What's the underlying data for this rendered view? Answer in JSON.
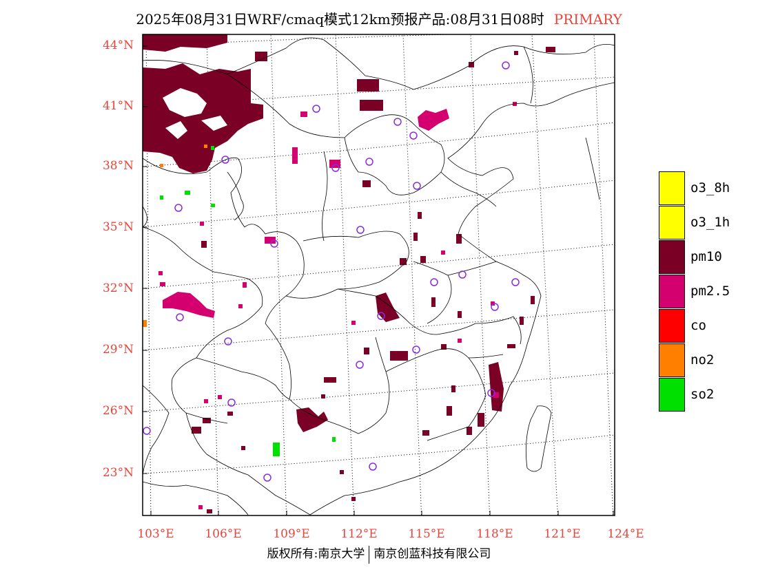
{
  "header": {
    "title": "2025年08月31日WRF/cmaq模式12km预报产品:08月31日08时",
    "mode": "PRIMARY"
  },
  "map": {
    "lat_labels": [
      "44°N",
      "41°N",
      "38°N",
      "35°N",
      "32°N",
      "29°N",
      "26°N",
      "23°N"
    ],
    "lon_labels": [
      "103°E",
      "106°E",
      "109°E",
      "112°E",
      "115°E",
      "118°E",
      "121°E",
      "124°E"
    ]
  },
  "legend": {
    "items": [
      {
        "label": "o3_8h",
        "color": "#ffff00"
      },
      {
        "label": "o3_1h",
        "color": "#ffff00"
      },
      {
        "label": "pm10",
        "color": "#7a0026"
      },
      {
        "label": "pm2.5",
        "color": "#d4006f"
      },
      {
        "label": "co",
        "color": "#ff0000"
      },
      {
        "label": "no2",
        "color": "#ff7f00"
      },
      {
        "label": "so2",
        "color": "#00e000"
      }
    ]
  },
  "colors": {
    "pm10": "#7a0026",
    "pm25": "#d4006f",
    "so2": "#00e000",
    "no2": "#ff7f00",
    "station": "#8a2be2",
    "axis_label": "#e8443a"
  },
  "footer": {
    "left": "版权所有:南京大学",
    "right": "南京创蓝科技有限公司"
  }
}
